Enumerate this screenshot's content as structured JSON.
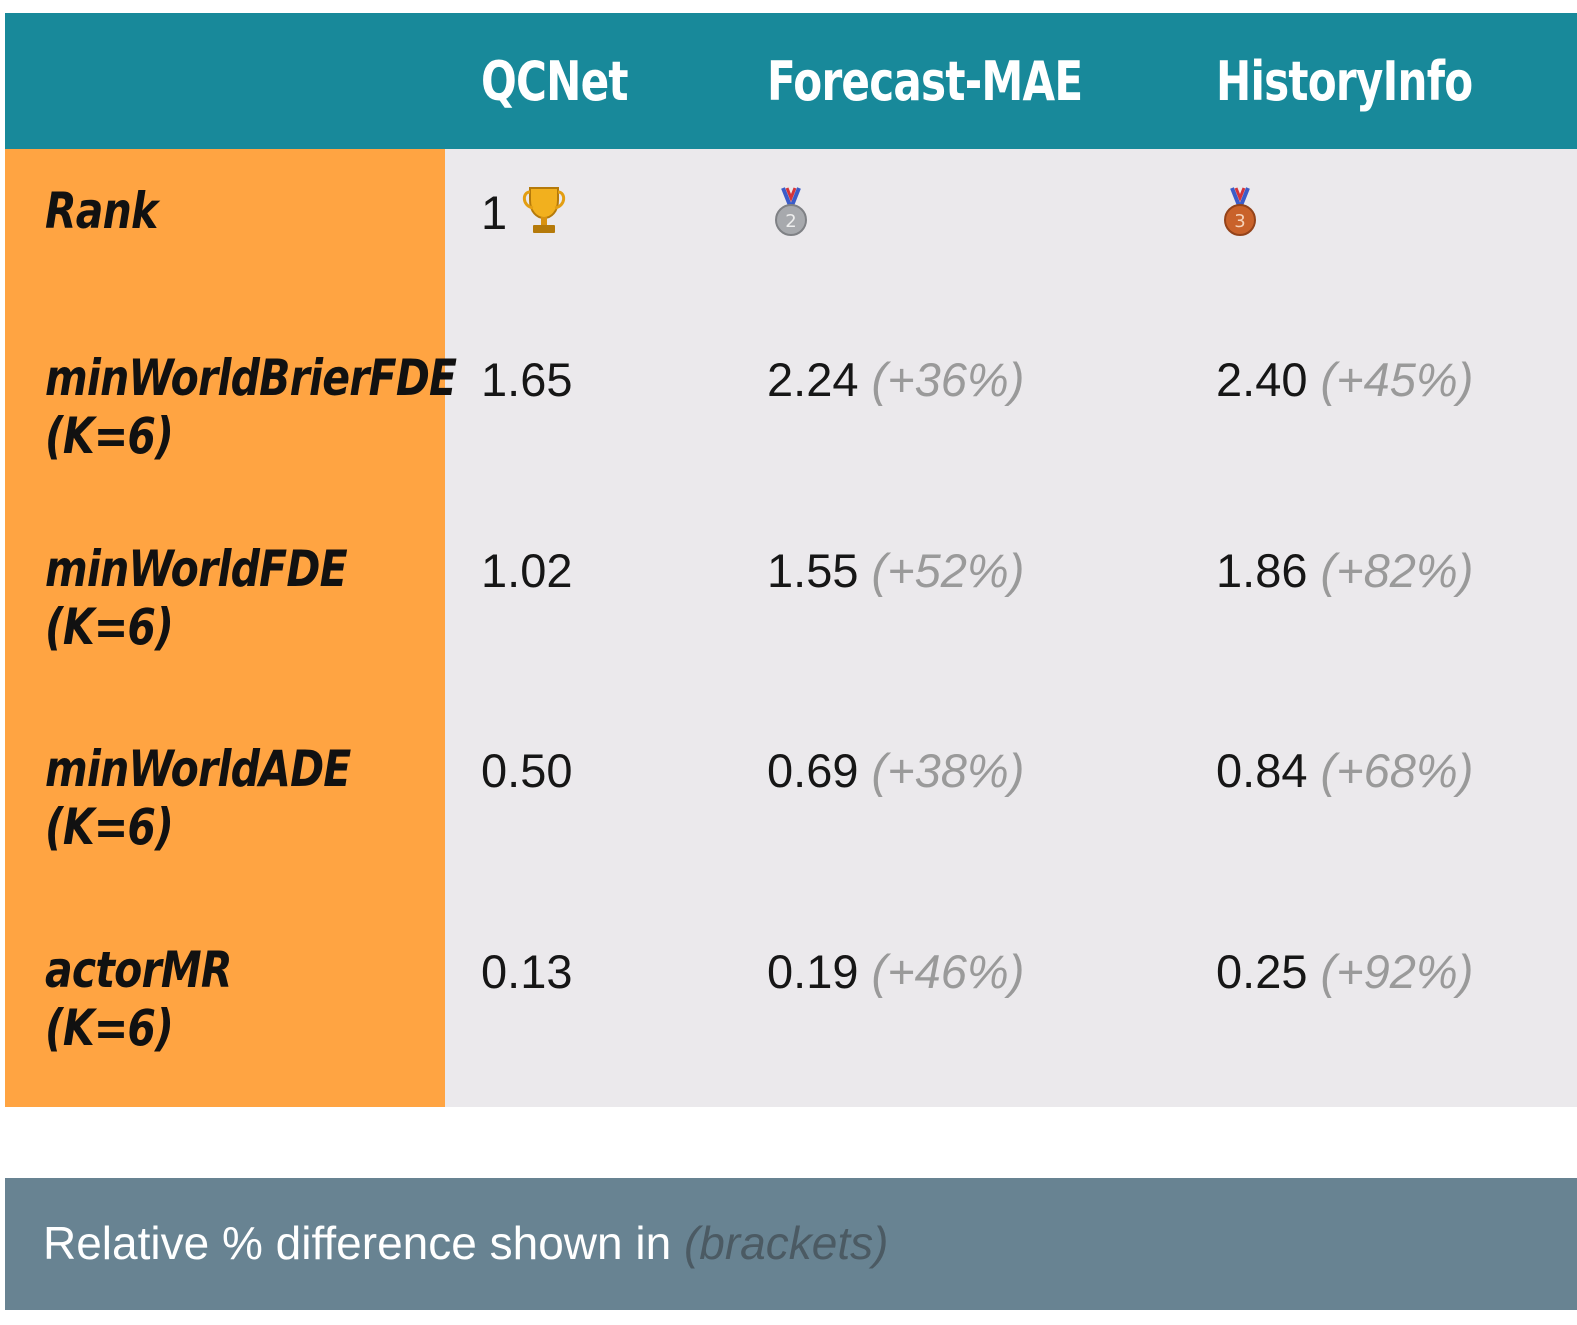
{
  "colors": {
    "header_bg": "#18899a",
    "label_column_bg": "#ffa442",
    "body_bg": "#ebe9ec",
    "footer_bg": "#688392",
    "delta_text": "#9a9a9a"
  },
  "columns": [
    "QCNet",
    "Forecast-MAE",
    "HistoryInfo"
  ],
  "rank": {
    "label": "Rank",
    "qcnet": {
      "value": "1",
      "icon": "trophy-icon"
    },
    "forecast_mae": {
      "icon": "second-place-medal-icon"
    },
    "historyinfo": {
      "icon": "third-place-medal-icon"
    }
  },
  "rows": [
    {
      "label_line1": "minWorldBrierFDE",
      "label_line2": "(K=6)",
      "qcnet": "1.65",
      "forecast_mae": "2.24",
      "forecast_mae_delta": "(+36%)",
      "historyinfo": "2.40",
      "historyinfo_delta": "(+45%)"
    },
    {
      "label_line1": "minWorldFDE",
      "label_line2": "(K=6)",
      "qcnet": "1.02",
      "forecast_mae": "1.55",
      "forecast_mae_delta": "(+52%)",
      "historyinfo": "1.86",
      "historyinfo_delta": "(+82%)"
    },
    {
      "label_line1": "minWorldADE",
      "label_line2": "(K=6)",
      "qcnet": "0.50",
      "forecast_mae": "0.69",
      "forecast_mae_delta": "(+38%)",
      "historyinfo": "0.84",
      "historyinfo_delta": "(+68%)"
    },
    {
      "label_line1": "actorMR",
      "label_line2": "(K=6)",
      "qcnet": "0.13",
      "forecast_mae": "0.19",
      "forecast_mae_delta": "(+46%)",
      "historyinfo": "0.25",
      "historyinfo_delta": "(+92%)"
    }
  ],
  "footer": {
    "text": "Relative % difference shown in",
    "bracket_text": "(brackets)"
  }
}
